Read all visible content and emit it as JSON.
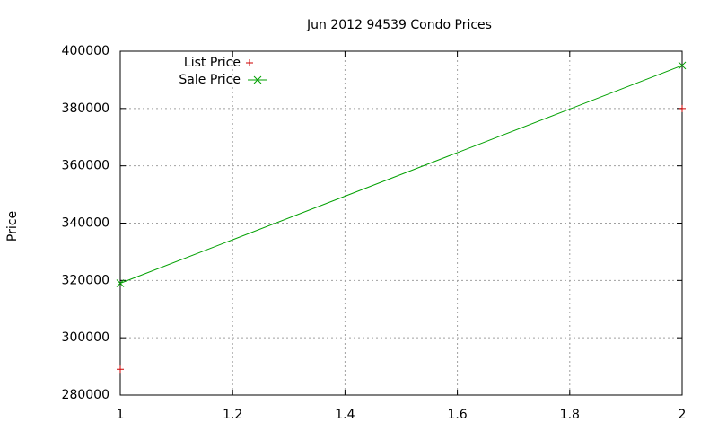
{
  "chart_data": {
    "type": "line",
    "title": "Jun 2012 94539 Condo Prices",
    "y_label": "Price",
    "x": [
      1,
      2
    ],
    "series": [
      {
        "name": "List Price",
        "color": "#cc0000",
        "style": "points",
        "marker": "+",
        "values": [
          289000,
          380000
        ]
      },
      {
        "name": "Sale Price",
        "color": "#00a000",
        "style": "linespoints",
        "marker": "x",
        "values": [
          319000,
          395000
        ]
      }
    ],
    "xlim": [
      1,
      2
    ],
    "xticks": [
      1,
      1.2,
      1.4,
      1.6,
      1.8,
      2
    ],
    "ylim": [
      280000,
      400000
    ],
    "yticks": [
      280000,
      300000,
      320000,
      340000,
      360000,
      380000,
      400000
    ],
    "grid": true,
    "legend": "top-left"
  }
}
